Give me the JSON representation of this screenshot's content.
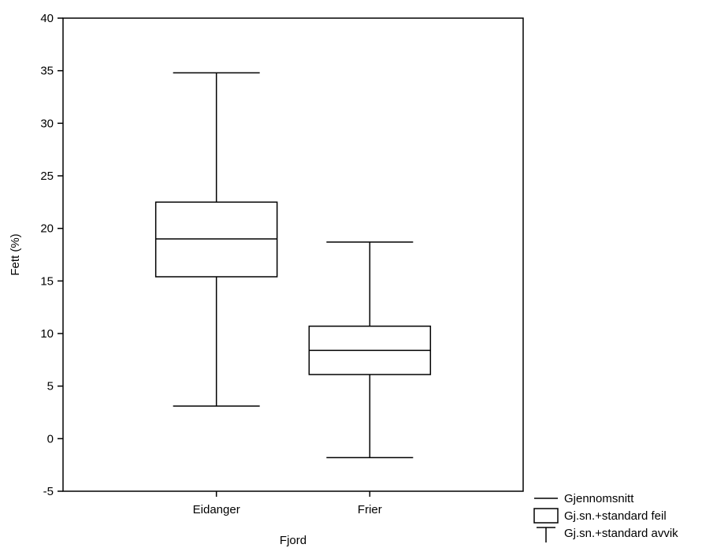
{
  "chart_data": {
    "type": "box",
    "title": "",
    "xlabel": "Fjord",
    "ylabel": "Fett (%)",
    "ylim": [
      -5,
      40
    ],
    "yticks": [
      -5,
      0,
      5,
      10,
      15,
      20,
      25,
      30,
      35,
      40
    ],
    "ytick_labels": [
      "-5",
      "0",
      "5",
      "10",
      "15",
      "20",
      "25",
      "30",
      "35",
      "40"
    ],
    "grid": false,
    "legend_position": "bottom-right",
    "categories": [
      "Eidanger",
      "Frier"
    ],
    "groups": [
      {
        "category": "Eidanger",
        "mean": 19.0,
        "se_low": 15.4,
        "se_high": 22.5,
        "sd_low": 3.1,
        "sd_high": 34.8
      },
      {
        "category": "Frier",
        "mean": 8.4,
        "se_low": 6.1,
        "se_high": 10.7,
        "sd_low": -1.8,
        "sd_high": 18.7
      }
    ],
    "legend": [
      {
        "symbol": "line",
        "label": "Gjennomsnitt"
      },
      {
        "symbol": "box",
        "label": "Gj.sn.+standard feil"
      },
      {
        "symbol": "whisker",
        "label": "Gj.sn.+standard avvik"
      }
    ]
  }
}
